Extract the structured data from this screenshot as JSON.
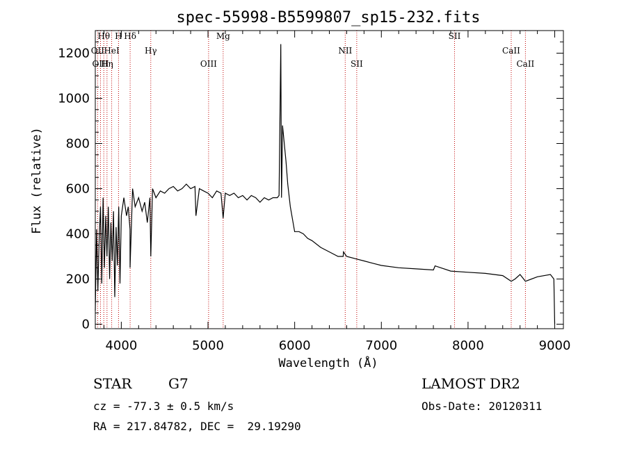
{
  "chart_data": {
    "type": "line",
    "title": "spec-55998-B5599807_sp15-232.fits",
    "xlabel": "Wavelength (Å)",
    "ylabel": "Flux (relative)",
    "xlim": [
      3700,
      9100
    ],
    "ylim": [
      -20,
      1300
    ],
    "x_ticks": [
      4000,
      5000,
      6000,
      7000,
      8000,
      9000
    ],
    "y_ticks": [
      0,
      200,
      400,
      600,
      800,
      1000,
      1200
    ],
    "grid": false,
    "series": [
      {
        "x": [
          3700,
          3715,
          3730,
          3745,
          3760,
          3775,
          3790,
          3805,
          3820,
          3835,
          3850,
          3865,
          3880,
          3895,
          3910,
          3925,
          3940,
          3955,
          3970,
          3985,
          4000,
          4030,
          4060,
          4080,
          4100,
          4101,
          4130,
          4160,
          4200,
          4240,
          4270,
          4300,
          4330,
          4340,
          4360,
          4400,
          4450,
          4500,
          4550,
          4600,
          4650,
          4700,
          4750,
          4800,
          4850,
          4861,
          4900,
          4950,
          5000,
          5050,
          5100,
          5150,
          5175,
          5200,
          5250,
          5300,
          5350,
          5400,
          5450,
          5500,
          5550,
          5600,
          5650,
          5700,
          5750,
          5800,
          5820,
          5840,
          5848,
          5852,
          5860,
          5880,
          5900,
          5920,
          5950,
          6000,
          6050,
          6100,
          6150,
          6200,
          6300,
          6400,
          6500,
          6560,
          6563,
          6600,
          6700,
          6800,
          6900,
          7000,
          7200,
          7400,
          7600,
          7620,
          7800,
          8000,
          8200,
          8400,
          8498,
          8542,
          8600,
          8662,
          8800,
          8950,
          8990,
          9000
        ],
        "y": [
          60,
          420,
          150,
          380,
          520,
          180,
          560,
          250,
          480,
          300,
          520,
          200,
          450,
          280,
          500,
          120,
          430,
          260,
          520,
          180,
          480,
          560,
          480,
          520,
          420,
          250,
          600,
          520,
          560,
          500,
          540,
          450,
          560,
          300,
          600,
          560,
          590,
          580,
          600,
          610,
          590,
          600,
          620,
          600,
          610,
          480,
          600,
          590,
          580,
          560,
          590,
          580,
          470,
          580,
          570,
          580,
          560,
          570,
          550,
          570,
          560,
          540,
          560,
          550,
          560,
          560,
          570,
          1240,
          560,
          650,
          880,
          800,
          720,
          620,
          520,
          410,
          410,
          400,
          380,
          370,
          340,
          320,
          300,
          300,
          320,
          300,
          290,
          280,
          270,
          260,
          250,
          245,
          240,
          258,
          235,
          230,
          225,
          215,
          190,
          200,
          220,
          190,
          210,
          220,
          200,
          0
        ]
      }
    ],
    "lines": [
      {
        "label": "Hθ",
        "x": 3798
      },
      {
        "label": "OII",
        "x": 3727
      },
      {
        "label": "OIII",
        "x": 3760
      },
      {
        "label": "H",
        "x": 3968
      },
      {
        "label": "HeI",
        "x": 3889
      },
      {
        "label": "Hη",
        "x": 3835
      },
      {
        "label": "Hδ",
        "x": 4102
      },
      {
        "label": "Hγ",
        "x": 4340
      },
      {
        "label": "OIII",
        "x": 5007
      },
      {
        "label": "Mg",
        "x": 5175
      },
      {
        "label": "NII",
        "x": 6583
      },
      {
        "label": "SII",
        "x": 6716
      },
      {
        "label": "SII",
        "x": 7844
      },
      {
        "label": "CaII",
        "x": 8498
      },
      {
        "label": "CaII",
        "x": 8662
      }
    ]
  },
  "footer": {
    "object_type": "STAR",
    "subclass": "G7",
    "cz": "cz = -77.3 ± 0.5 km/s",
    "radec": "RA = 217.84782, DEC =  29.19290",
    "survey": "LAMOST DR2",
    "obs_date": "Obs-Date: 20120311"
  }
}
